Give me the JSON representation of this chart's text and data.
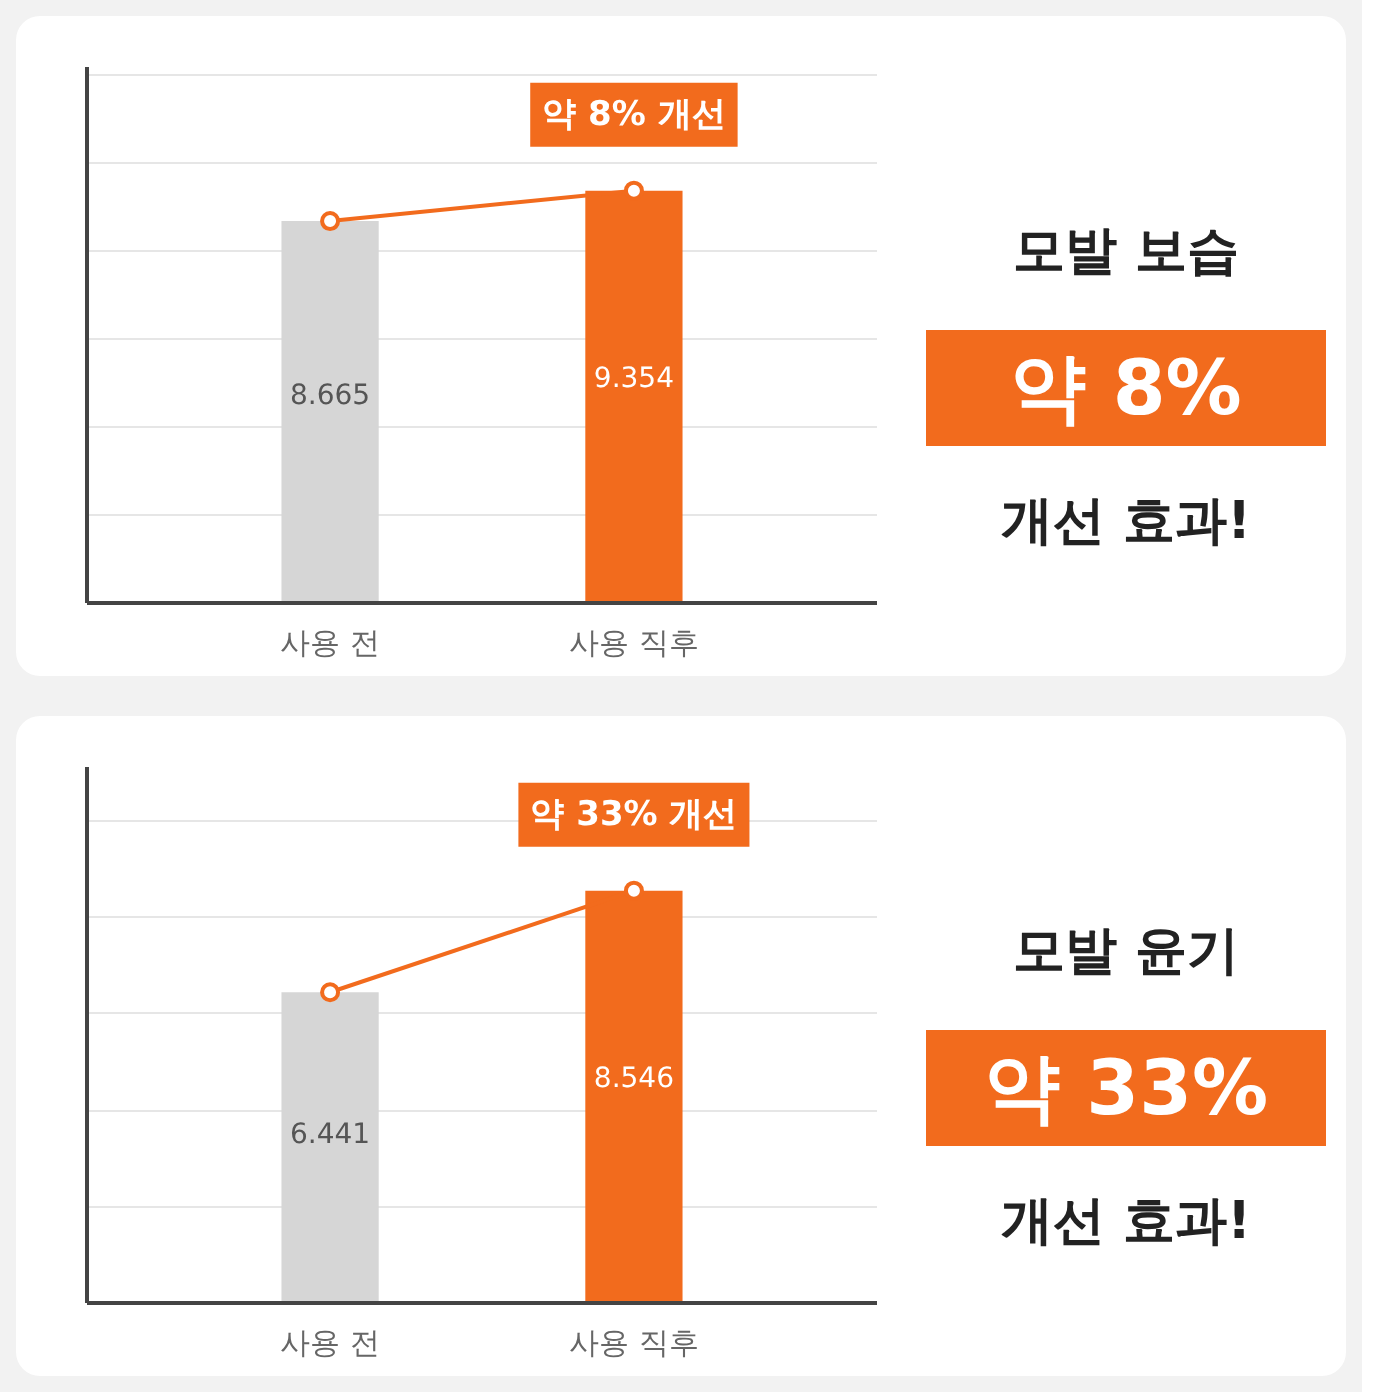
{
  "chart_data": [
    {
      "type": "bar",
      "categories": [
        "사용 전",
        "사용 직후"
      ],
      "grid": "y",
      "tick_labels": "x",
      "marker": "circle",
      "series": [
        {
          "colors": [
            "#d6d6d6",
            "#f26b1d"
          ],
          "values": [
            8.665,
            9.354
          ],
          "value_labels": [
            "8.665",
            "9.354"
          ]
        },
        {
          "type": "line",
          "color": "#f26b1d",
          "values": [
            8.665,
            9.354
          ]
        }
      ],
      "annotations": [
        {
          "text": "약 8% 개선",
          "x": "사용 직후",
          "y": 9.354
        },
        "모발 보습",
        "약 8%",
        "개선 효과!"
      ]
    },
    {
      "type": "bar",
      "categories": [
        "사용 전",
        "사용 직후"
      ],
      "grid": "y",
      "tick_labels": "x",
      "marker": "circle",
      "series": [
        {
          "colors": [
            "#d6d6d6",
            "#f26b1d"
          ],
          "values": [
            6.441,
            8.546
          ],
          "value_labels": [
            "6.441",
            "8.546"
          ]
        },
        {
          "type": "line",
          "color": "#f26b1d",
          "values": [
            6.441,
            8.546
          ]
        }
      ],
      "annotations": [
        {
          "text": "약 33% 개선",
          "x": "사용 직후",
          "y": 8.546
        },
        "모발 윤기",
        "약 33%",
        "개선 효과!"
      ]
    }
  ]
}
